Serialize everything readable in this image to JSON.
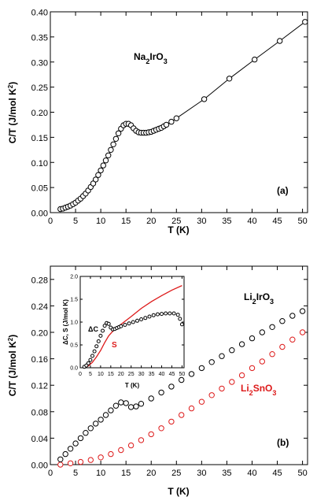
{
  "chart_data": [
    {
      "type": "line",
      "panel_label": "(a)",
      "xlabel": "T (K)",
      "ylabel_parts": [
        "C/T (J/mol K",
        "2",
        ")"
      ],
      "xlim": [
        0,
        51
      ],
      "ylim": [
        0,
        0.4
      ],
      "xticks": [
        "0",
        "5",
        "10",
        "15",
        "20",
        "25",
        "30",
        "35",
        "40",
        "45",
        "50"
      ],
      "yticks": [
        "0.00",
        "0.05",
        "0.10",
        "0.15",
        "0.20",
        "0.25",
        "0.30",
        "0.35",
        "0.40"
      ],
      "annotation_parts": [
        "Na",
        "2",
        "IrO",
        "3"
      ],
      "series": [
        {
          "color": "#000000",
          "x": [
            2.0,
            2.5,
            3.0,
            3.5,
            4.0,
            4.5,
            5.0,
            5.5,
            6.0,
            6.5,
            7.0,
            7.5,
            8.0,
            8.5,
            9.0,
            9.5,
            10.0,
            10.5,
            11.0,
            11.5,
            12.0,
            12.5,
            13.0,
            13.5,
            14.0,
            14.5,
            15.0,
            15.5,
            16.0,
            16.5,
            17.0,
            17.5,
            18.0,
            18.5,
            19.0,
            19.5,
            20.0,
            20.5,
            21.0,
            21.5,
            22.0,
            22.5,
            23.0,
            24.0,
            25.0,
            30.5,
            35.5,
            40.5,
            45.5,
            50.5
          ],
          "values": [
            0.007,
            0.008,
            0.01,
            0.012,
            0.014,
            0.017,
            0.02,
            0.024,
            0.028,
            0.033,
            0.038,
            0.044,
            0.051,
            0.058,
            0.066,
            0.075,
            0.084,
            0.094,
            0.104,
            0.114,
            0.125,
            0.136,
            0.147,
            0.158,
            0.167,
            0.174,
            0.177,
            0.177,
            0.174,
            0.168,
            0.163,
            0.16,
            0.159,
            0.159,
            0.159,
            0.16,
            0.161,
            0.163,
            0.165,
            0.167,
            0.169,
            0.172,
            0.175,
            0.181,
            0.188,
            0.226,
            0.267,
            0.305,
            0.342,
            0.38
          ]
        }
      ]
    },
    {
      "type": "line",
      "panel_label": "(b)",
      "xlabel": "T (K)",
      "ylabel_parts": [
        "C/T (J/mol K",
        "2",
        ")"
      ],
      "xlim": [
        0,
        51
      ],
      "ylim": [
        0,
        0.3
      ],
      "xticks": [
        "0",
        "5",
        "10",
        "15",
        "20",
        "25",
        "30",
        "35",
        "40",
        "45",
        "50"
      ],
      "yticks": [
        "0.00",
        "0.04",
        "0.08",
        "0.12",
        "0.16",
        "0.20",
        "0.24",
        "0.28"
      ],
      "series": [
        {
          "name_parts": [
            "Li",
            "2",
            "IrO",
            "3"
          ],
          "color": "#000000",
          "x": [
            2.0,
            3.0,
            4.0,
            5.0,
            6.0,
            7.0,
            8.0,
            9.0,
            10.0,
            11.0,
            12.0,
            13.0,
            14.0,
            15.0,
            16.0,
            17.0,
            18.0,
            20.0,
            22.0,
            24.0,
            26.0,
            28.0,
            30.0,
            32.0,
            34.0,
            36.0,
            38.0,
            40.0,
            42.0,
            44.0,
            46.0,
            48.0,
            50.0
          ],
          "values": [
            0.008,
            0.016,
            0.024,
            0.032,
            0.04,
            0.048,
            0.055,
            0.062,
            0.068,
            0.075,
            0.082,
            0.089,
            0.094,
            0.093,
            0.087,
            0.088,
            0.092,
            0.1,
            0.109,
            0.118,
            0.128,
            0.137,
            0.146,
            0.155,
            0.164,
            0.173,
            0.182,
            0.191,
            0.2,
            0.208,
            0.217,
            0.225,
            0.232
          ]
        },
        {
          "name_parts": [
            "Li",
            "2",
            "SnO",
            "3"
          ],
          "color": "#dd1a1a",
          "x": [
            2.0,
            4.0,
            6.0,
            8.0,
            10.0,
            12.0,
            14.0,
            16.0,
            18.0,
            20.0,
            22.0,
            24.0,
            26.0,
            28.0,
            30.0,
            32.0,
            34.0,
            36.0,
            38.0,
            40.0,
            42.0,
            44.0,
            46.0,
            48.0,
            50.0
          ],
          "values": [
            0.0,
            0.002,
            0.004,
            0.007,
            0.011,
            0.016,
            0.022,
            0.029,
            0.037,
            0.046,
            0.055,
            0.065,
            0.075,
            0.085,
            0.095,
            0.105,
            0.115,
            0.125,
            0.135,
            0.146,
            0.156,
            0.167,
            0.178,
            0.189,
            0.2
          ]
        }
      ],
      "inset": {
        "xlabel": "T (K)",
        "ylabel": "ΔC, S (J/mol K)",
        "xlim": [
          0,
          51
        ],
        "ylim": [
          0,
          2.0
        ],
        "xticks": [
          "0",
          "5",
          "10",
          "15",
          "20",
          "25",
          "30",
          "35",
          "40",
          "45",
          "50"
        ],
        "yticks": [
          "0.0",
          "0.5",
          "1.0",
          "1.5",
          "2.0"
        ],
        "label_dc": "ΔC",
        "label_s": "S",
        "series": [
          {
            "name": "ΔC",
            "color": "#000000",
            "x": [
              2,
              3,
              4,
              5,
              6,
              7,
              8,
              9,
              10,
              11,
              12,
              13,
              14,
              15,
              16,
              17,
              18,
              19,
              20,
              22,
              24,
              26,
              28,
              30,
              32,
              34,
              36,
              38,
              40,
              42,
              44,
              46,
              48,
              49,
              50
            ],
            "values": [
              0.02,
              0.05,
              0.1,
              0.17,
              0.26,
              0.36,
              0.47,
              0.58,
              0.7,
              0.81,
              0.92,
              0.98,
              0.96,
              0.88,
              0.84,
              0.85,
              0.87,
              0.89,
              0.91,
              0.94,
              0.97,
              1.0,
              1.03,
              1.06,
              1.09,
              1.12,
              1.15,
              1.17,
              1.18,
              1.19,
              1.19,
              1.19,
              1.16,
              1.07,
              0.95
            ]
          },
          {
            "name": "S",
            "color": "#dd1a1a",
            "x": [
              2,
              4,
              6,
              8,
              10,
              12,
              14,
              16,
              18,
              20,
              25,
              30,
              35,
              40,
              45,
              50
            ],
            "values": [
              0.0,
              0.04,
              0.12,
              0.24,
              0.38,
              0.55,
              0.7,
              0.8,
              0.88,
              0.95,
              1.12,
              1.3,
              1.45,
              1.58,
              1.7,
              1.8
            ]
          }
        ]
      }
    }
  ]
}
